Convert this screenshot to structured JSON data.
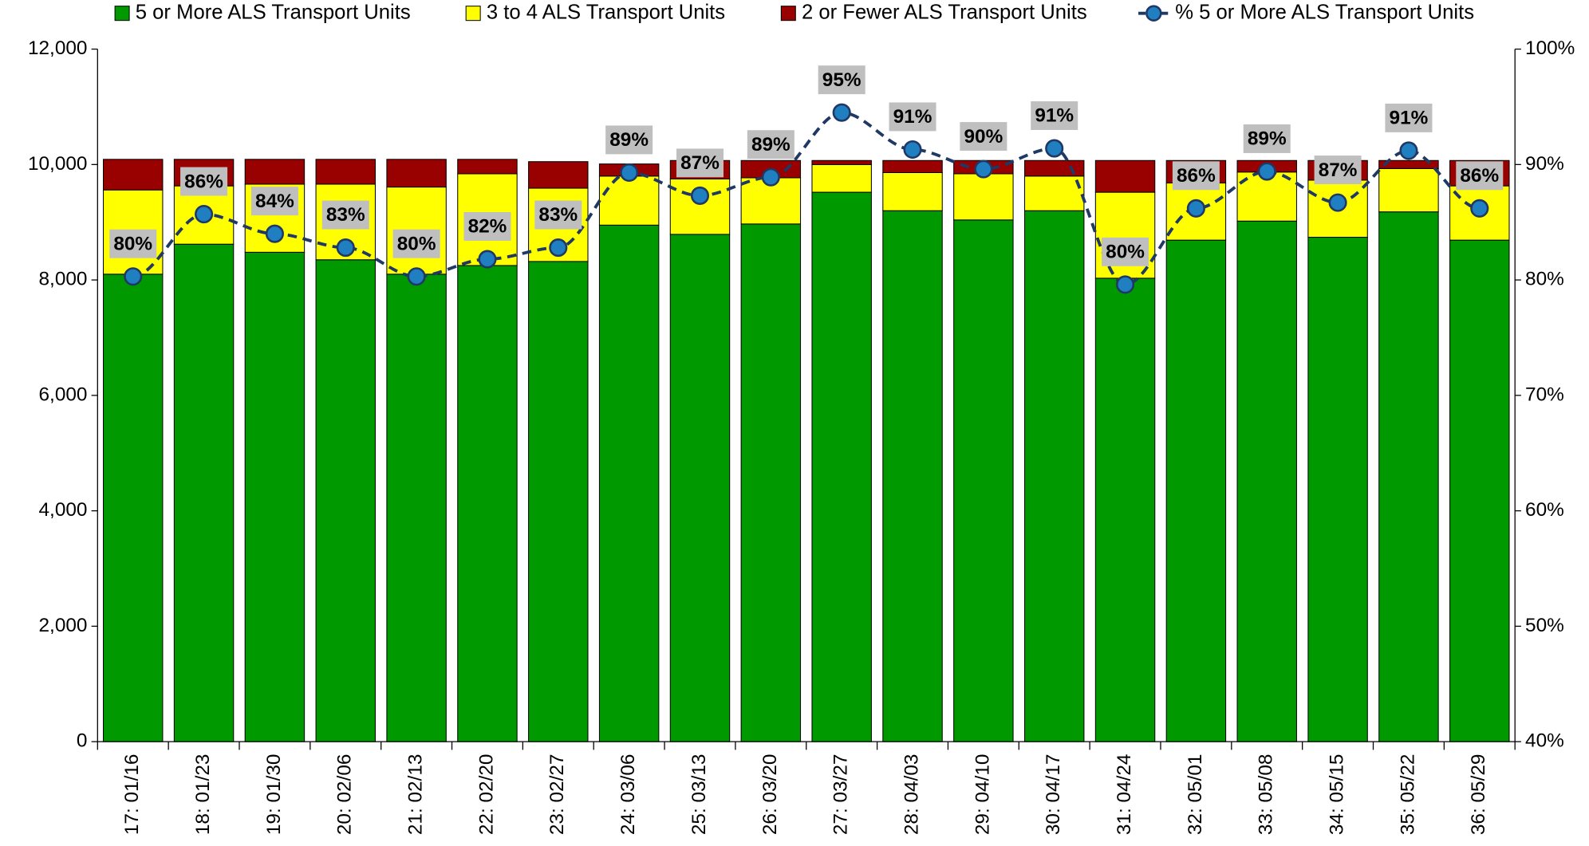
{
  "chart_data": {
    "type": "bar",
    "stacked": true,
    "categories": [
      "17: 01/16",
      "18: 01/23",
      "19: 01/30",
      "20: 02/06",
      "21: 02/13",
      "22: 02/20",
      "23: 02/27",
      "24: 03/06",
      "25: 03/13",
      "26: 03/20",
      "27: 03/27",
      "28: 04/03",
      "29: 04/10",
      "30: 04/17",
      "31: 04/24",
      "32: 05/01",
      "33: 05/08",
      "34: 05/15",
      "35: 05/22",
      "36: 05/29"
    ],
    "series": [
      {
        "name": "5 or More ALS Transport Units",
        "color": "#009900",
        "type": "bar",
        "values": [
          8100,
          8620,
          8480,
          8350,
          8100,
          8250,
          8320,
          8950,
          8790,
          8970,
          9520,
          9200,
          9040,
          9200,
          8030,
          8690,
          9020,
          8740,
          9180,
          8690
        ]
      },
      {
        "name": "3 to 4 ALS Transport Units",
        "color": "#ffff00",
        "type": "bar",
        "values": [
          1460,
          1010,
          1180,
          1310,
          1510,
          1590,
          1270,
          850,
          960,
          800,
          480,
          660,
          800,
          600,
          1490,
          990,
          850,
          990,
          750,
          940
        ]
      },
      {
        "name": "2 or Fewer ALS Transport Units",
        "color": "#990000",
        "type": "bar",
        "values": [
          530,
          460,
          430,
          430,
          480,
          250,
          460,
          210,
          320,
          300,
          70,
          210,
          230,
          270,
          550,
          390,
          200,
          340,
          140,
          440
        ]
      },
      {
        "name": "% 5 or More ALS Transport Units",
        "color": "#1f7fc0",
        "type": "line",
        "axis": "y2",
        "values": [
          80.3,
          85.7,
          84.0,
          82.8,
          80.3,
          81.8,
          82.8,
          89.3,
          87.3,
          88.9,
          94.5,
          91.3,
          89.6,
          91.4,
          79.6,
          86.2,
          89.4,
          86.7,
          91.2,
          86.2
        ],
        "value_labels": [
          "80%",
          "86%",
          "84%",
          "83%",
          "80%",
          "82%",
          "83%",
          "89%",
          "87%",
          "89%",
          "95%",
          "91%",
          "90%",
          "91%",
          "80%",
          "86%",
          "89%",
          "87%",
          "91%",
          "86%"
        ]
      }
    ],
    "ylim": [
      0,
      12000
    ],
    "yticks": [
      0,
      {
        "value": 2000,
        "label": "2,000"
      },
      {
        "value": 4000,
        "label": "4,000"
      },
      {
        "value": 6000,
        "label": "6,000"
      },
      {
        "value": 8000,
        "label": "8,000"
      },
      {
        "value": 10000,
        "label": "10,000"
      },
      {
        "value": 12000,
        "label": "12,000"
      }
    ],
    "y2lim": [
      40,
      100
    ],
    "y2ticks": [
      {
        "value": 40,
        "label": "40%"
      },
      {
        "value": 50,
        "label": "50%"
      },
      {
        "value": 60,
        "label": "60%"
      },
      {
        "value": 70,
        "label": "70%"
      },
      {
        "value": 80,
        "label": "80%"
      },
      {
        "value": 90,
        "label": "90%"
      },
      {
        "value": 100,
        "label": "100%"
      }
    ],
    "grid": false,
    "legend": "top"
  }
}
